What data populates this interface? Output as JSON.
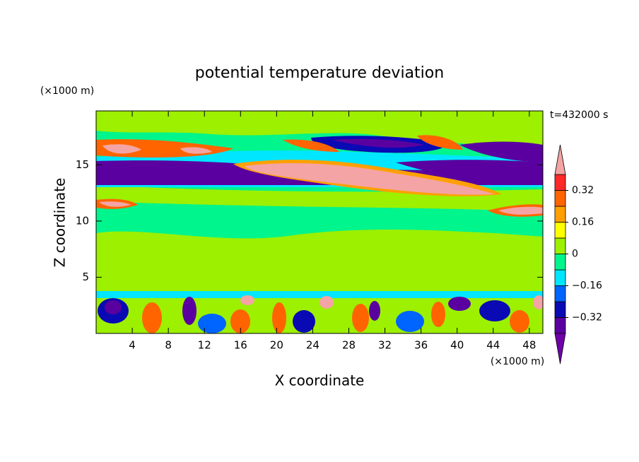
{
  "chart_data": {
    "type": "contour",
    "title": "potential temperature deviation",
    "xlabel": "X coordinate",
    "ylabel": "Z coordinate",
    "x_unit": "(×1000 m)",
    "y_unit": "(×1000 m)",
    "annotation": "t=432000 s",
    "xlim": [
      0,
      49.5
    ],
    "ylim": [
      0,
      19.8
    ],
    "xticks": [
      4,
      8,
      12,
      16,
      20,
      24,
      28,
      32,
      36,
      40,
      44,
      48
    ],
    "yticks": [
      5,
      10,
      15
    ],
    "colorbar": {
      "levels": [
        -0.4,
        -0.32,
        -0.24,
        -0.16,
        -0.08,
        0,
        0.08,
        0.16,
        0.24,
        0.32,
        0.4
      ],
      "colors": [
        "#7000a8",
        "#5a00a0",
        "#0a0ab4",
        "#0064ff",
        "#00e6ff",
        "#00f58c",
        "#9cf000",
        "#ffff00",
        "#ffa000",
        "#ff6400",
        "#ff2828",
        "#f4a4a4"
      ],
      "ticks": [
        {
          "value": -0.32,
          "label": "−0.32"
        },
        {
          "value": -0.16,
          "label": "−0.16"
        },
        0,
        0.16,
        0.32
      ]
    }
  }
}
